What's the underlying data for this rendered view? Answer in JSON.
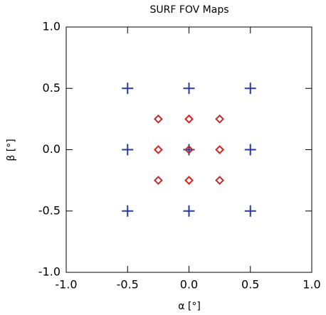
{
  "chart_data": {
    "type": "scatter",
    "title": "SURF FOV Maps",
    "x_label": "α [°]",
    "y_label": "β [°]",
    "xlim": [
      -1.0,
      1.0
    ],
    "ylim": [
      -1.0,
      1.0
    ],
    "xticks": [
      {
        "value": -1.0,
        "label": "-1.0"
      },
      -0.5,
      {
        "value": 0.0,
        "label": "0.0"
      },
      0.5,
      {
        "value": 1.0,
        "label": "1.0"
      }
    ],
    "yticks": [
      {
        "value": -1.0,
        "label": "-1.0"
      },
      -0.5,
      {
        "value": 0.0,
        "label": "0.0"
      },
      0.5,
      {
        "value": 1.0,
        "label": "1.0"
      }
    ],
    "series": [
      {
        "marker": "plus",
        "color": "#2a3a9a",
        "x": [
          -0.5,
          0,
          0.5,
          -0.5,
          0,
          0.5,
          -0.5,
          0,
          0.5
        ],
        "y": [
          0.5,
          0.5,
          0.5,
          0,
          0,
          0,
          -0.5,
          -0.5,
          -0.5
        ]
      },
      {
        "marker": "diamond",
        "color": "#d02828",
        "x": [
          -0.25,
          0,
          0.25,
          -0.25,
          0,
          0.25,
          -0.25,
          0,
          0.25
        ],
        "y": [
          0.25,
          0.25,
          0.25,
          0,
          0,
          0,
          -0.25,
          -0.25,
          -0.25
        ]
      }
    ]
  }
}
